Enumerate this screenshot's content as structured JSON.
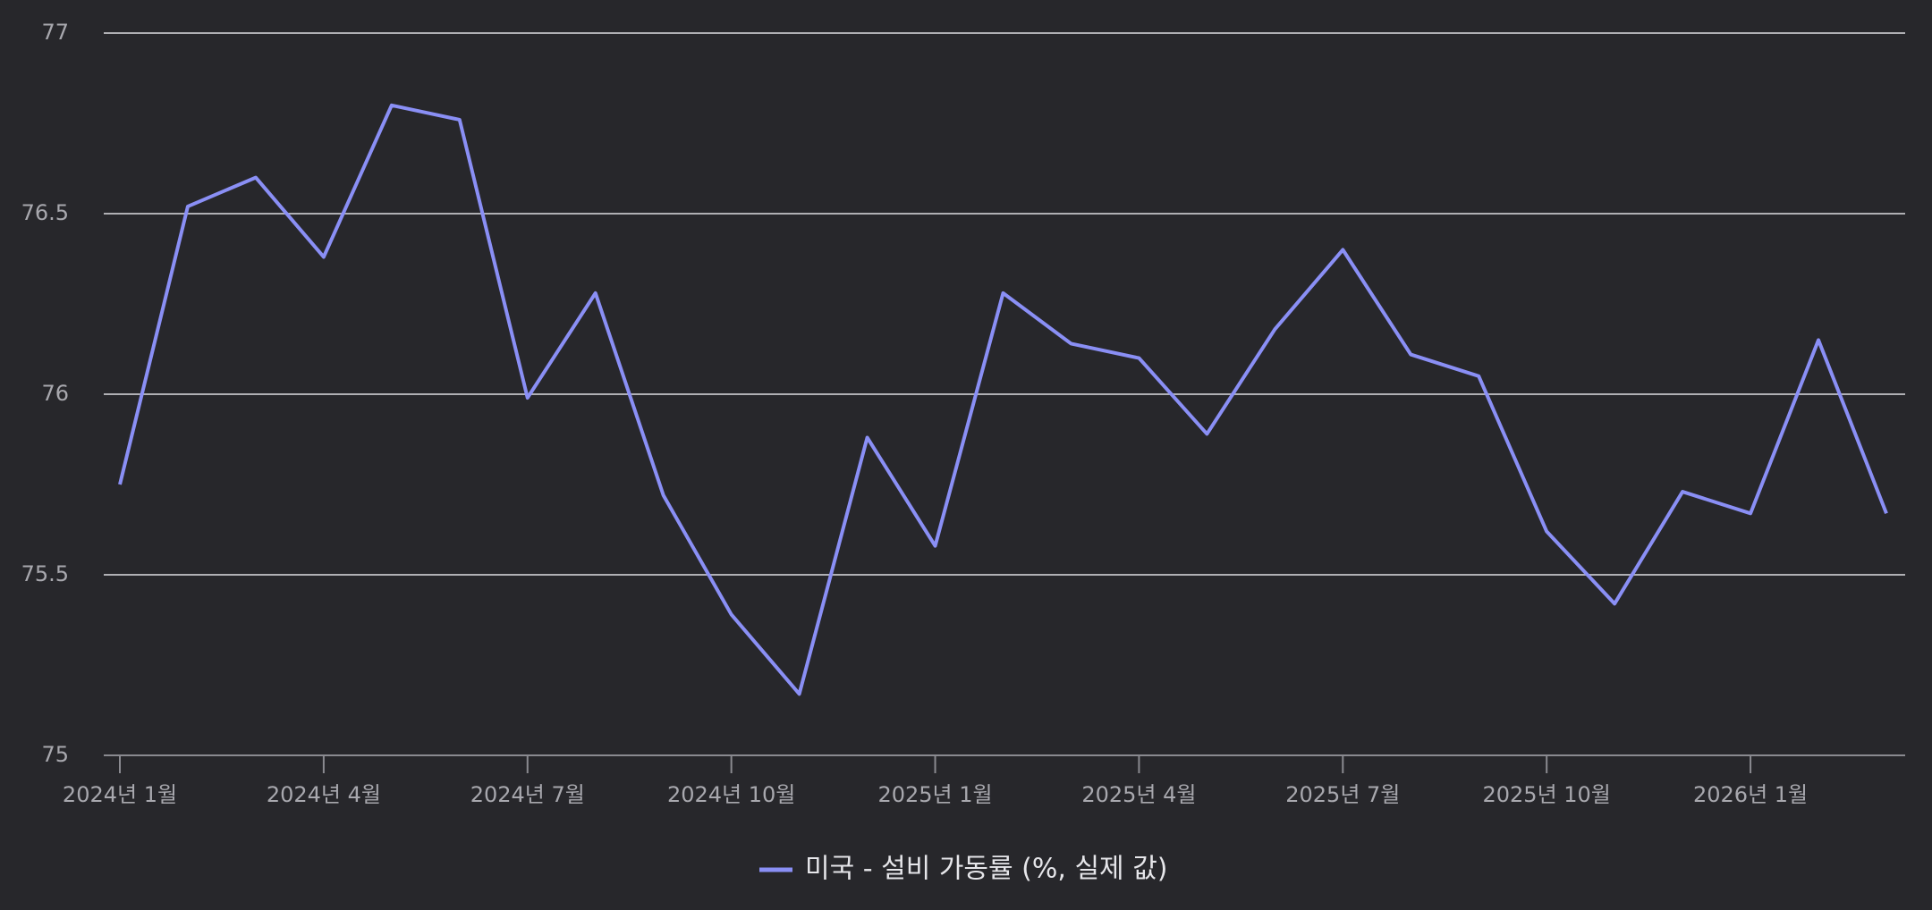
{
  "chart_data": {
    "type": "line",
    "categories": [
      "2024년 1월",
      null,
      null,
      "2024년 4월",
      null,
      null,
      "2024년 7월",
      null,
      null,
      "2024년 10월",
      null,
      null,
      "2025년 1월",
      null,
      null,
      "2025년 4월",
      null,
      null,
      "2025년 7월",
      null,
      null,
      "2025년 10월",
      null,
      null,
      "2026년 1월",
      null,
      null
    ],
    "series": [
      {
        "name": "미국 - 설비 가동률 (%, 실제 값)",
        "color": "#8a8ff5",
        "values": [
          75.75,
          76.52,
          76.6,
          76.38,
          76.8,
          76.76,
          75.99,
          76.28,
          75.72,
          75.39,
          75.17,
          75.88,
          75.58,
          76.28,
          76.14,
          76.1,
          75.89,
          76.18,
          76.4,
          76.11,
          76.05,
          75.62,
          75.42,
          75.73,
          75.67,
          76.15,
          75.67
        ]
      }
    ],
    "ylim": [
      75,
      77
    ],
    "yticks": [
      75,
      75.5,
      76,
      76.5,
      77
    ],
    "grid": true,
    "legend": "bottom"
  }
}
